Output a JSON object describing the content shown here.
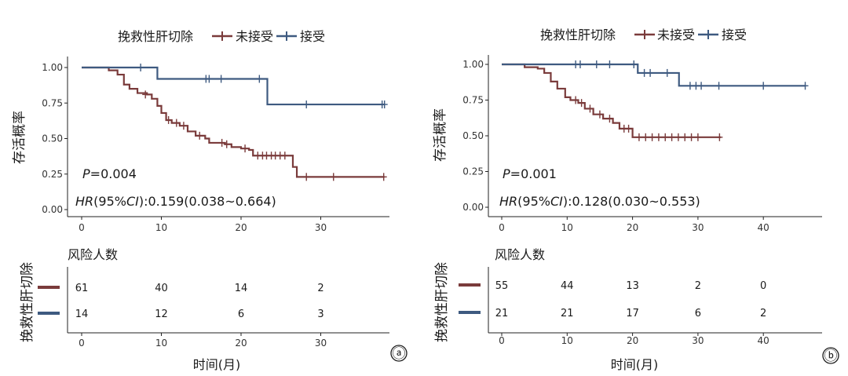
{
  "legend": {
    "title": "挽救性肝切除",
    "items": [
      {
        "label": "未接受",
        "color": "#7a3b3b"
      },
      {
        "label": "接受",
        "color": "#3e5a80"
      }
    ]
  },
  "chart_data": [
    {
      "type": "line",
      "panel": "ⓐ",
      "ylabel": "存活概率",
      "xlabel": "时间(月)",
      "xlim": [
        0,
        38
      ],
      "ylim": [
        0,
        1
      ],
      "xticks": [
        0,
        10,
        20,
        30
      ],
      "yticks": [
        "0.00",
        "0.25",
        "0.50",
        "0.75",
        "1.00"
      ],
      "p_prefix": "P",
      "p_value": "=0.004",
      "hr_prefix": "HR",
      "hr_mid": "(95%",
      "hr_ci": "CI",
      "hr_value": "):0.159(0.038~0.664)",
      "series": [
        {
          "name": "未接受",
          "color": "#7a3b3b",
          "steps": [
            [
              0,
              1.0
            ],
            [
              3.4,
              0.98
            ],
            [
              4.5,
              0.95
            ],
            [
              5.3,
              0.88
            ],
            [
              6.0,
              0.85
            ],
            [
              7.0,
              0.82
            ],
            [
              8.2,
              0.81
            ],
            [
              8.8,
              0.78
            ],
            [
              9.5,
              0.73
            ],
            [
              10.0,
              0.68
            ],
            [
              10.6,
              0.63
            ],
            [
              11.3,
              0.61
            ],
            [
              12.3,
              0.59
            ],
            [
              13.3,
              0.55
            ],
            [
              14.3,
              0.52
            ],
            [
              15.5,
              0.5
            ],
            [
              16.0,
              0.47
            ],
            [
              17.5,
              0.47
            ],
            [
              18.0,
              0.46
            ],
            [
              18.8,
              0.44
            ],
            [
              20.0,
              0.43
            ],
            [
              21.0,
              0.42
            ],
            [
              21.5,
              0.38
            ],
            [
              26.0,
              0.38
            ],
            [
              26.5,
              0.3
            ],
            [
              27.0,
              0.23
            ],
            [
              38,
              0.23
            ]
          ],
          "censored": [
            [
              8.0,
              0.81
            ],
            [
              10.9,
              0.63
            ],
            [
              11.9,
              0.61
            ],
            [
              12.8,
              0.59
            ],
            [
              14.8,
              0.52
            ],
            [
              17.6,
              0.47
            ],
            [
              18.2,
              0.46
            ],
            [
              20.5,
              0.43
            ],
            [
              22.1,
              0.38
            ],
            [
              22.7,
              0.38
            ],
            [
              23.2,
              0.38
            ],
            [
              23.8,
              0.38
            ],
            [
              24.3,
              0.38
            ],
            [
              24.9,
              0.38
            ],
            [
              25.5,
              0.38
            ],
            [
              28.2,
              0.23
            ],
            [
              31.6,
              0.23
            ],
            [
              37.9,
              0.23
            ]
          ]
        },
        {
          "name": "接受",
          "color": "#3e5a80",
          "steps": [
            [
              0,
              1.0
            ],
            [
              9.5,
              0.92
            ],
            [
              23.2,
              0.92
            ],
            [
              23.3,
              0.74
            ],
            [
              38,
              0.74
            ]
          ],
          "censored": [
            [
              7.4,
              1.0
            ],
            [
              15.6,
              0.92
            ],
            [
              16.0,
              0.92
            ],
            [
              17.5,
              0.92
            ],
            [
              22.3,
              0.92
            ],
            [
              28.2,
              0.74
            ],
            [
              37.7,
              0.74
            ],
            [
              38.0,
              0.74
            ]
          ]
        }
      ],
      "risk_table": {
        "title": "风险人数",
        "times": [
          0,
          10,
          20,
          30
        ],
        "rows": [
          {
            "color": "#7a3b3b",
            "values": [
              "61",
              "40",
              "14",
              "2"
            ]
          },
          {
            "color": "#3e5a80",
            "values": [
              "14",
              "12",
              "6",
              "3"
            ]
          }
        ],
        "xlabel": "时间(月)",
        "group_label": "挽救性肝切除"
      }
    },
    {
      "type": "line",
      "panel": "ⓑ",
      "ylabel": "存活概率",
      "xlabel": "时间(月)",
      "xlim": [
        0,
        48
      ],
      "ylim": [
        0,
        1
      ],
      "xticks": [
        0,
        10,
        20,
        30,
        40
      ],
      "yticks": [
        "0.00",
        "0.25",
        "0.50",
        "0.75",
        "1.00"
      ],
      "p_prefix": "P",
      "p_value": "=0.001",
      "hr_prefix": "HR",
      "hr_mid": "(95%",
      "hr_ci": "CI",
      "hr_value": "):0.128(0.030~0.553)",
      "series": [
        {
          "name": "未接受",
          "color": "#7a3b3b",
          "steps": [
            [
              0,
              1.0
            ],
            [
              3.5,
              0.98
            ],
            [
              5.5,
              0.97
            ],
            [
              6.5,
              0.94
            ],
            [
              7.5,
              0.88
            ],
            [
              8.5,
              0.83
            ],
            [
              9.7,
              0.77
            ],
            [
              10.5,
              0.75
            ],
            [
              11.7,
              0.73
            ],
            [
              12.7,
              0.69
            ],
            [
              14.0,
              0.65
            ],
            [
              15.5,
              0.62
            ],
            [
              17.0,
              0.59
            ],
            [
              18.0,
              0.55
            ],
            [
              19.5,
              0.55
            ],
            [
              20.0,
              0.49
            ],
            [
              33.5,
              0.49
            ]
          ],
          "censored": [
            [
              11.3,
              0.75
            ],
            [
              12.2,
              0.73
            ],
            [
              13.5,
              0.69
            ],
            [
              15.0,
              0.65
            ],
            [
              16.5,
              0.62
            ],
            [
              18.7,
              0.55
            ],
            [
              19.4,
              0.55
            ],
            [
              21.0,
              0.49
            ],
            [
              22.0,
              0.49
            ],
            [
              23.0,
              0.49
            ],
            [
              24.0,
              0.49
            ],
            [
              25.0,
              0.49
            ],
            [
              26.0,
              0.49
            ],
            [
              27.0,
              0.49
            ],
            [
              28.0,
              0.49
            ],
            [
              29.0,
              0.49
            ],
            [
              30.0,
              0.49
            ],
            [
              33.3,
              0.49
            ]
          ]
        },
        {
          "name": "接受",
          "color": "#3e5a80",
          "steps": [
            [
              0,
              1.0
            ],
            [
              20.7,
              1.0
            ],
            [
              20.8,
              0.94
            ],
            [
              27.0,
              0.94
            ],
            [
              27.1,
              0.85
            ],
            [
              46.5,
              0.85
            ]
          ],
          "censored": [
            [
              11.3,
              1.0
            ],
            [
              12.0,
              1.0
            ],
            [
              14.5,
              1.0
            ],
            [
              16.5,
              1.0
            ],
            [
              20.2,
              1.0
            ],
            [
              21.8,
              0.94
            ],
            [
              22.7,
              0.94
            ],
            [
              25.3,
              0.94
            ],
            [
              28.8,
              0.85
            ],
            [
              29.7,
              0.85
            ],
            [
              30.5,
              0.85
            ],
            [
              33.2,
              0.85
            ],
            [
              40.0,
              0.85
            ],
            [
              46.4,
              0.85
            ]
          ]
        }
      ],
      "risk_table": {
        "title": "风险人数",
        "times": [
          0,
          10,
          20,
          30,
          40
        ],
        "rows": [
          {
            "color": "#7a3b3b",
            "values": [
              "55",
              "44",
              "13",
              "2",
              "0"
            ]
          },
          {
            "color": "#3e5a80",
            "values": [
              "21",
              "21",
              "17",
              "6",
              "2"
            ]
          }
        ],
        "xlabel": "时间(月)",
        "group_label": "挽救性肝切除"
      }
    }
  ]
}
